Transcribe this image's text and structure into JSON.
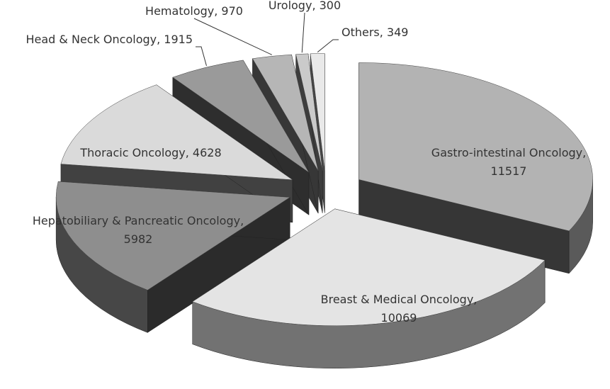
{
  "chart_data": {
    "type": "pie",
    "categories": [
      "Gastro-intestinal Oncology",
      "Breast & Medical Oncology",
      "Hepatobiliary & Pancreatic Oncology",
      "Thoracic Oncology",
      "Head & Neck Oncology",
      "Hematology",
      "Urology",
      "Others"
    ],
    "values": [
      11517,
      10069,
      5982,
      4628,
      1915,
      970,
      300,
      349
    ],
    "colors": [
      "#b3b3b3",
      "#e4e4e4",
      "#8e8e8e",
      "#dadada",
      "#9a9a9a",
      "#b6b6b6",
      "#cacaca",
      "#e9e9e9"
    ]
  }
}
